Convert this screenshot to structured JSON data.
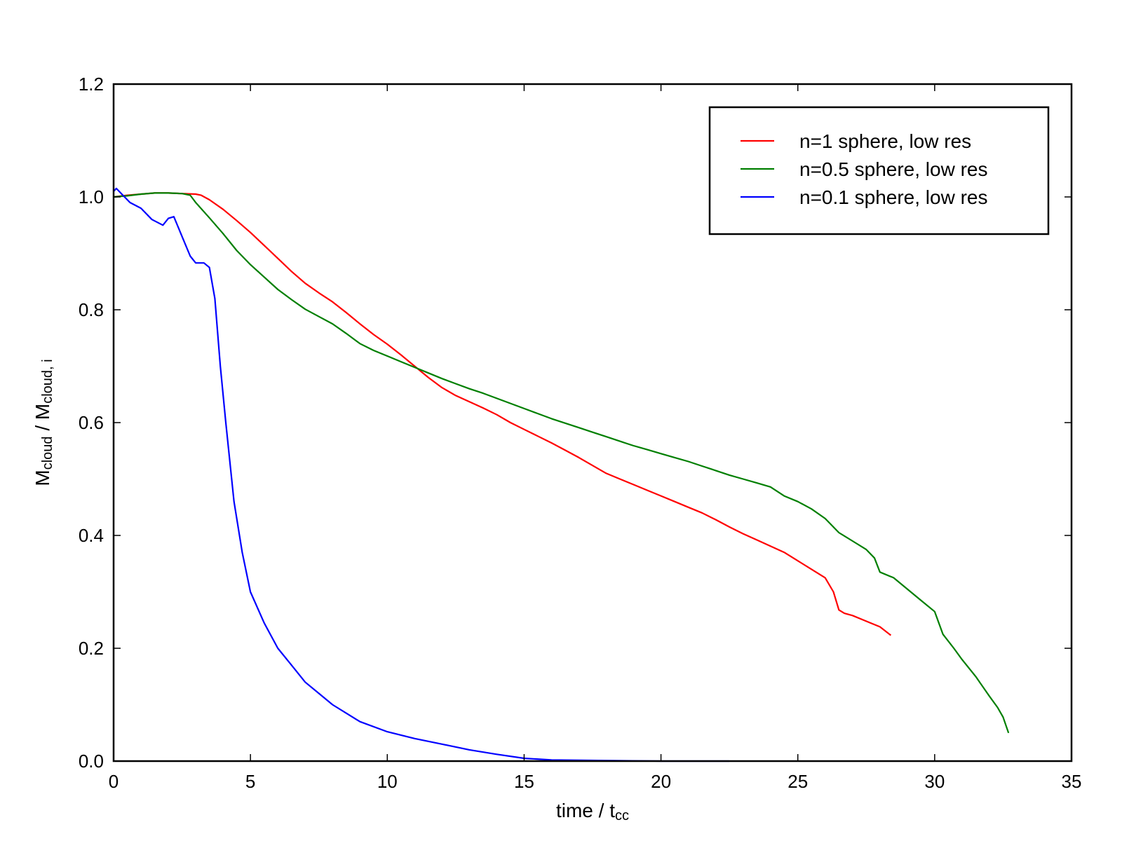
{
  "chart_data": {
    "type": "line",
    "title": "",
    "xlabel": {
      "main": "time / t",
      "sub": "cc"
    },
    "ylabel": {
      "num": "M",
      "num_sub": "cloud",
      "sep": " / ",
      "den": "M",
      "den_sub": "cloud, i"
    },
    "xlim": [
      0,
      35
    ],
    "ylim": [
      0.0,
      1.2
    ],
    "xticks": [
      0,
      5,
      10,
      15,
      20,
      25,
      30,
      35
    ],
    "xtick_labels": [
      "0",
      "5",
      "10",
      "15",
      "20",
      "25",
      "30",
      "35"
    ],
    "yticks": [
      0.0,
      0.2,
      0.4,
      0.6,
      0.8,
      1.0,
      1.2
    ],
    "ytick_labels": [
      "0.0",
      "0.2",
      "0.4",
      "0.6",
      "0.8",
      "1.0",
      "1.2"
    ],
    "grid": false,
    "legend_position": "top-right",
    "series": [
      {
        "name": "n=1 sphere, low res",
        "color": "#ff0000",
        "x": [
          0,
          0.5,
          1,
          1.5,
          2,
          2.5,
          3,
          3.2,
          3.5,
          4,
          4.5,
          5,
          5.5,
          6,
          6.5,
          7,
          7.5,
          8,
          8.5,
          9,
          9.5,
          10,
          10.5,
          11,
          11.5,
          12,
          12.5,
          13,
          13.5,
          14,
          14.5,
          15,
          15.5,
          16,
          16.5,
          17,
          17.5,
          18,
          18.5,
          19,
          19.5,
          20,
          20.5,
          21,
          21.5,
          22,
          22.5,
          23,
          23.5,
          24,
          24.5,
          25,
          25.5,
          26,
          26.3,
          26.5,
          26.7,
          27,
          27.5,
          28,
          28.4
        ],
        "values": [
          1.0,
          1.003,
          1.005,
          1.007,
          1.007,
          1.006,
          1.005,
          1.003,
          0.995,
          0.978,
          0.958,
          0.937,
          0.914,
          0.891,
          0.868,
          0.847,
          0.83,
          0.814,
          0.795,
          0.775,
          0.756,
          0.739,
          0.72,
          0.7,
          0.68,
          0.662,
          0.648,
          0.637,
          0.626,
          0.614,
          0.6,
          0.588,
          0.576,
          0.564,
          0.551,
          0.538,
          0.524,
          0.51,
          0.5,
          0.49,
          0.48,
          0.47,
          0.46,
          0.45,
          0.44,
          0.428,
          0.415,
          0.403,
          0.392,
          0.381,
          0.37,
          0.355,
          0.34,
          0.325,
          0.3,
          0.268,
          0.262,
          0.258,
          0.248,
          0.238,
          0.223
        ]
      },
      {
        "name": "n=0.5 sphere, low res",
        "color": "#007f00",
        "x": [
          0,
          0.5,
          1,
          1.5,
          2,
          2.5,
          2.8,
          3,
          3.5,
          4,
          4.5,
          5,
          5.5,
          6,
          6.5,
          7,
          7.5,
          8,
          8.5,
          9,
          9.5,
          10,
          10.5,
          11,
          11.5,
          12,
          12.5,
          13,
          13.5,
          14,
          14.5,
          15,
          15.5,
          16,
          16.5,
          17,
          17.5,
          18,
          18.5,
          19,
          19.5,
          20,
          20.5,
          21,
          21.5,
          22,
          22.5,
          23,
          23.5,
          24,
          24.5,
          25,
          25.5,
          26,
          26.5,
          27,
          27.5,
          27.8,
          28,
          28.5,
          29,
          29.5,
          30,
          30.3,
          30.7,
          31,
          31.5,
          32,
          32.3,
          32.5,
          32.7
        ],
        "values": [
          1.0,
          1.002,
          1.005,
          1.007,
          1.007,
          1.006,
          1.003,
          0.99,
          0.963,
          0.935,
          0.905,
          0.88,
          0.858,
          0.836,
          0.818,
          0.801,
          0.788,
          0.775,
          0.758,
          0.74,
          0.728,
          0.718,
          0.708,
          0.698,
          0.688,
          0.678,
          0.669,
          0.66,
          0.652,
          0.643,
          0.634,
          0.625,
          0.616,
          0.607,
          0.599,
          0.591,
          0.583,
          0.575,
          0.567,
          0.559,
          0.552,
          0.545,
          0.538,
          0.531,
          0.523,
          0.515,
          0.507,
          0.5,
          0.493,
          0.486,
          0.47,
          0.46,
          0.447,
          0.43,
          0.405,
          0.39,
          0.375,
          0.36,
          0.335,
          0.325,
          0.305,
          0.285,
          0.265,
          0.225,
          0.2,
          0.18,
          0.15,
          0.115,
          0.095,
          0.078,
          0.05
        ]
      },
      {
        "name": "n=0.1 sphere, low res",
        "color": "#0000ff",
        "x": [
          0,
          0.1,
          0.3,
          0.6,
          1,
          1.4,
          1.8,
          2.0,
          2.2,
          2.5,
          2.8,
          3.0,
          3.3,
          3.5,
          3.7,
          3.9,
          4.1,
          4.4,
          4.7,
          5.0,
          5.5,
          6.0,
          6.5,
          7.0,
          7.5,
          8.0,
          9.0,
          10.0,
          11.0,
          12.0,
          13.0,
          14.0,
          15.0,
          16.0,
          18.0,
          20.0,
          22.5
        ],
        "values": [
          1.01,
          1.015,
          1.005,
          0.99,
          0.98,
          0.96,
          0.95,
          0.962,
          0.965,
          0.93,
          0.895,
          0.883,
          0.883,
          0.875,
          0.82,
          0.7,
          0.6,
          0.46,
          0.37,
          0.3,
          0.245,
          0.2,
          0.17,
          0.14,
          0.12,
          0.1,
          0.07,
          0.052,
          0.04,
          0.03,
          0.02,
          0.012,
          0.005,
          0.002,
          0.001,
          0.0,
          0.0
        ]
      }
    ]
  }
}
